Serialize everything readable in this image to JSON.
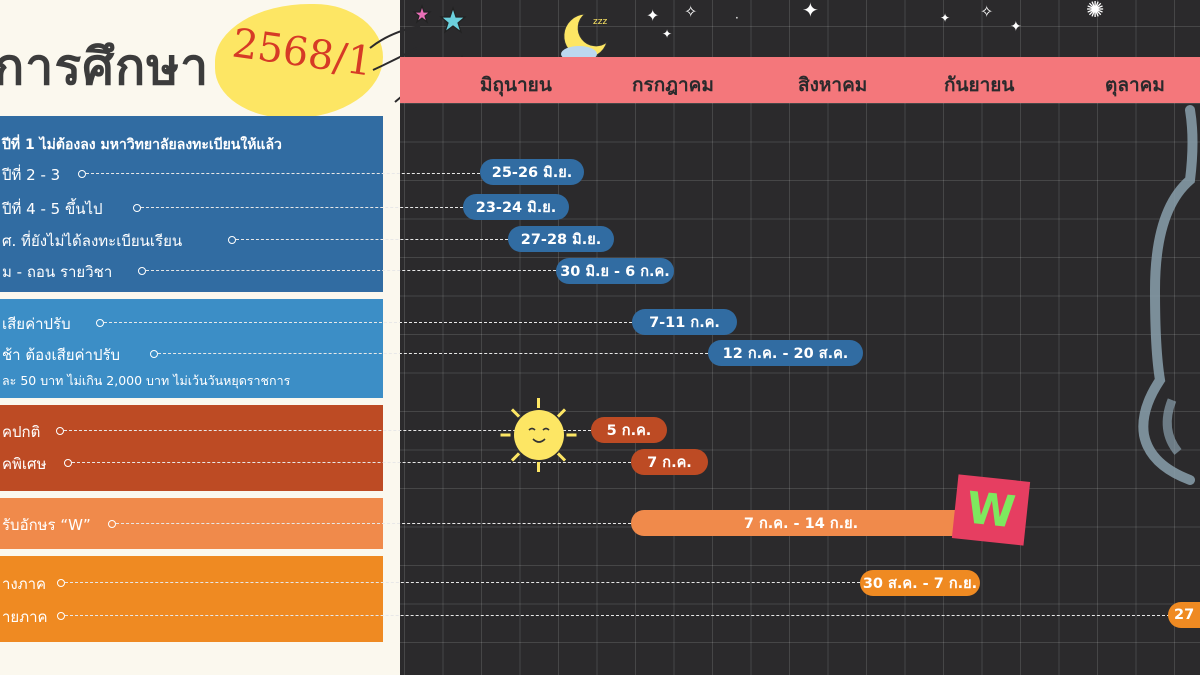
{
  "header": {
    "title": "การศึกษา",
    "term": "2568/1"
  },
  "months": [
    "มิถุนายน",
    "กรกฎาคม",
    "สิงหาคม",
    "กันยายน",
    "ตุลาคม"
  ],
  "sections": {
    "registration": {
      "color": "#316ca2",
      "items": [
        "ปีที่ 1 ไม่ต้องลง มหาวิทยาลัยลงทะเบียนให้แล้ว",
        "ปีที่ 2 - 3",
        "ปีที่ 4 - 5 ขึ้นไป",
        "ศ. ที่ยังไม่ได้ลงทะเบียนเรียน",
        "ม - ถอน รายวิชา"
      ]
    },
    "fees": {
      "color": "#3c8ec6",
      "items": [
        "เสียค่าปรับ",
        "ช้า ต้องเสียค่าปรับ",
        "ละ 50 บาท ไม่เกิน 2,000 บาท ไม่เว้นวันหยุดราชการ"
      ]
    },
    "classes": {
      "color": "#bd4b24",
      "items": [
        "คปกติ",
        "คพิเศษ"
      ]
    },
    "withdraw": {
      "color": "#f08a4b",
      "items": [
        "รับอักษร “W”"
      ]
    },
    "exams": {
      "color": "#ef8a22",
      "items": [
        "างภาค",
        "ายภาค"
      ]
    }
  },
  "pills": {
    "p1": "25-26 มิ.ย.",
    "p2": "23-24 มิ.ย.",
    "p3": "27-28 มิ.ย.",
    "p4": "30 มิ.ย - 6 ก.ค.",
    "p5": "7-11 ก.ค.",
    "p6": "12 ก.ค. - 20 ส.ค.",
    "p7": "5 ก.ค.",
    "p8": "7 ก.ค.",
    "p9": "7 ก.ค. - 14 ก.ย.",
    "p10": "30 ส.ค. - 7 ก.ย.",
    "p11": "27"
  },
  "w_badge": "W",
  "colors": {
    "blue_dark": "#316ca2",
    "blue": "#3c8ec6",
    "rust": "#bd4b24",
    "orange": "#f08a4b",
    "orange_deep": "#ef8a22",
    "month_bar": "#f4777b",
    "yellow": "#fde664",
    "board": "#2b2a2c"
  }
}
